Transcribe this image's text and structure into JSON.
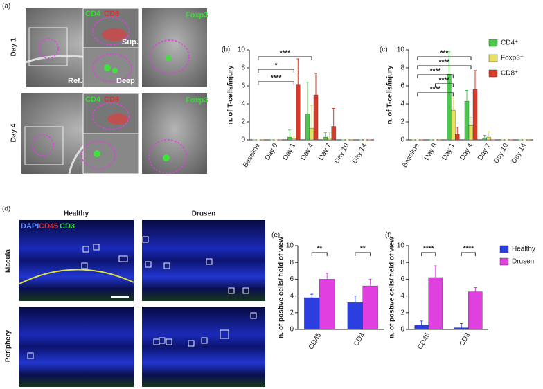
{
  "figure_a": {
    "label": "(a)",
    "row_labels": [
      "Day 1",
      "Day 4"
    ],
    "day1": {
      "marker_green": "CD4",
      "marker_red": "CD8",
      "sup": "Sup.",
      "ref": "Ref.",
      "deep": "Deep",
      "foxp3": "Foxp3"
    },
    "day4": {
      "marker_green": "CD4",
      "marker_red": "CD8",
      "foxp3": "Foxp3"
    }
  },
  "figure_d": {
    "label": "(d)",
    "col_labels": [
      "Healthy",
      "Drusen"
    ],
    "row_labels": [
      "Macula",
      "Periphery"
    ],
    "stain": {
      "dapi": "DAPI",
      "cd45": "CD45",
      "cd3": "CD3"
    }
  },
  "chart_data": [
    {
      "type": "bar",
      "label": "(b)",
      "y_label": "n. of T-cells/injury",
      "categories": [
        "Baseline",
        "Day 0",
        "Day 1",
        "Day 4",
        "Day 7",
        "Day 10",
        "Day 14"
      ],
      "series": [
        {
          "color": "#4cc94c",
          "values": [
            0,
            0,
            0.3,
            2.9,
            0.3,
            0,
            0
          ],
          "errors": [
            0,
            0,
            0.8,
            3.5,
            0.5,
            0,
            0
          ]
        },
        {
          "color": "#e8e060",
          "values": [
            0,
            0,
            0.1,
            1.3,
            0.2,
            0,
            0
          ],
          "errors": [
            0,
            0,
            0.3,
            2.5,
            0.6,
            0,
            0
          ]
        },
        {
          "color": "#d83a2a",
          "values": [
            0,
            0,
            6.1,
            5.0,
            1.5,
            0,
            0
          ],
          "errors": [
            0,
            0,
            2.9,
            2.4,
            2.0,
            0,
            0
          ]
        }
      ],
      "ylim": [
        0,
        10
      ],
      "yticks": [
        0,
        2,
        4,
        6,
        8,
        10
      ],
      "annotations": [
        {
          "text": "****",
          "from": "Baseline",
          "to": "Day 4"
        },
        {
          "text": "*",
          "from": "Baseline",
          "to": "Day 1"
        },
        {
          "text": "****",
          "from": "Baseline",
          "to": "Day 1"
        }
      ]
    },
    {
      "type": "bar",
      "label": "(c)",
      "y_label": "n. of T-cells/injury",
      "legend": "upper right",
      "categories": [
        "Baseline",
        "Day 0",
        "Day 1",
        "Day 4",
        "Day 7",
        "Day 10",
        "Day 14"
      ],
      "series": [
        {
          "name": "CD4⁺",
          "color": "#4cc94c",
          "values": [
            0,
            0,
            7.3,
            4.3,
            0.2,
            0,
            0
          ],
          "errors": [
            0,
            0,
            2.5,
            1.2,
            0.3,
            0,
            0
          ]
        },
        {
          "name": "Foxp3⁺",
          "color": "#e8e060",
          "values": [
            0,
            0,
            3.3,
            1.6,
            0.3,
            0,
            0
          ],
          "errors": [
            0,
            0,
            1.5,
            0.9,
            0.6,
            0,
            0
          ]
        },
        {
          "name": "CD8⁺",
          "color": "#d83a2a",
          "values": [
            0,
            0,
            0.6,
            5.6,
            0,
            0,
            0
          ],
          "errors": [
            0,
            0,
            0.8,
            2.1,
            0,
            0,
            0
          ]
        }
      ],
      "ylim": [
        0,
        10
      ],
      "yticks": [
        0,
        2,
        4,
        6,
        8,
        10
      ],
      "annotations": [
        {
          "text": "***",
          "from": "Baseline",
          "to": "Day 4"
        },
        {
          "text": "****",
          "from": "Baseline",
          "to": "Day 4"
        },
        {
          "text": "****",
          "from": "Baseline",
          "to": "Day 1"
        },
        {
          "text": "****",
          "from": "Day 0",
          "to": "Day 1"
        },
        {
          "text": "****",
          "from": "Baseline",
          "to": "Day 1"
        }
      ]
    },
    {
      "type": "bar",
      "label": "(e)",
      "y_label": "n. of postive cells/ field of view",
      "categories": [
        "CD45",
        "CD3"
      ],
      "series": [
        {
          "color": "#2b3fe0",
          "values": [
            3.8,
            3.2
          ],
          "errors": [
            0.4,
            0.8
          ]
        },
        {
          "color": "#e040e0",
          "values": [
            6.0,
            5.2
          ],
          "errors": [
            0.7,
            0.8
          ]
        }
      ],
      "ylim": [
        0,
        10
      ],
      "yticks": [
        0,
        2,
        4,
        6,
        8,
        10
      ],
      "annotations": [
        {
          "text": "**",
          "category": "CD45"
        },
        {
          "text": "**",
          "category": "CD3"
        }
      ]
    },
    {
      "type": "bar",
      "label": "(f)",
      "y_label": "n. of postive cells/ field of view",
      "legend": "right",
      "categories": [
        "CD45",
        "CD3"
      ],
      "series": [
        {
          "name": "Healthy",
          "color": "#2b3fe0",
          "values": [
            0.5,
            0.2
          ],
          "errors": [
            0.5,
            0.5
          ]
        },
        {
          "name": "Drusen",
          "color": "#e040e0",
          "values": [
            6.2,
            4.5
          ],
          "errors": [
            1.4,
            0.5
          ]
        }
      ],
      "ylim": [
        0,
        10
      ],
      "yticks": [
        0,
        2,
        4,
        6,
        8,
        10
      ],
      "annotations": [
        {
          "text": "****",
          "category": "CD45"
        },
        {
          "text": "****",
          "category": "CD3"
        }
      ]
    }
  ]
}
